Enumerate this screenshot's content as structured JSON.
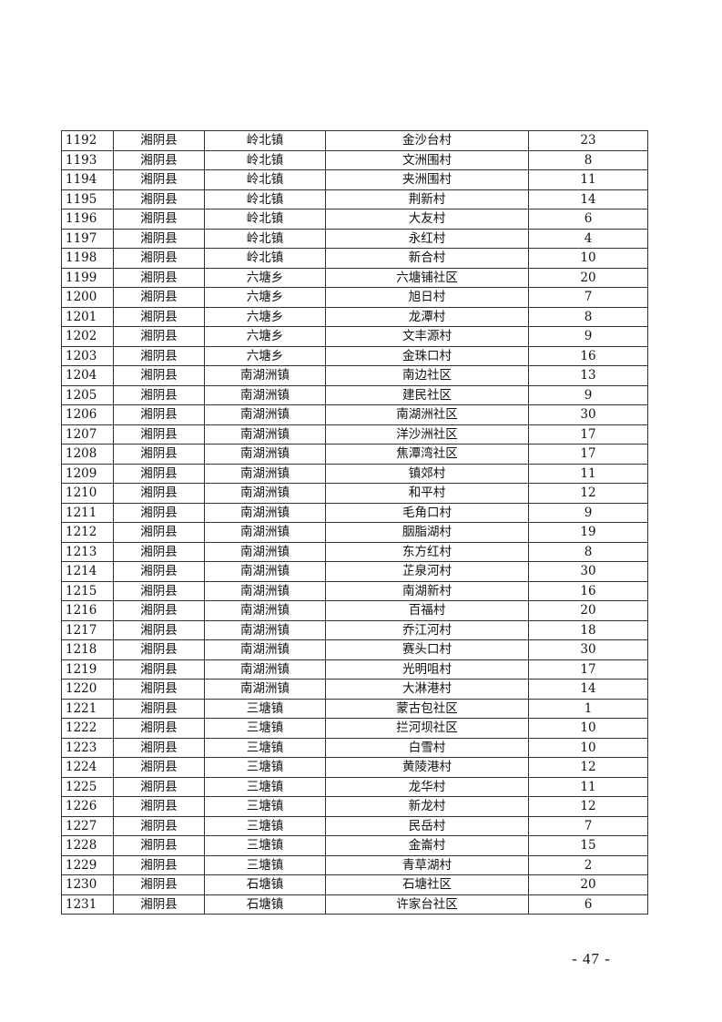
{
  "table": {
    "rows": [
      [
        "1192",
        "湘阴县",
        "岭北镇",
        "金沙台村",
        "23"
      ],
      [
        "1193",
        "湘阴县",
        "岭北镇",
        "文洲围村",
        "8"
      ],
      [
        "1194",
        "湘阴县",
        "岭北镇",
        "夹洲围村",
        "11"
      ],
      [
        "1195",
        "湘阴县",
        "岭北镇",
        "荆新村",
        "14"
      ],
      [
        "1196",
        "湘阴县",
        "岭北镇",
        "大友村",
        "6"
      ],
      [
        "1197",
        "湘阴县",
        "岭北镇",
        "永红村",
        "4"
      ],
      [
        "1198",
        "湘阴县",
        "岭北镇",
        "新合村",
        "10"
      ],
      [
        "1199",
        "湘阴县",
        "六塘乡",
        "六塘铺社区",
        "20"
      ],
      [
        "1200",
        "湘阴县",
        "六塘乡",
        "旭日村",
        "7"
      ],
      [
        "1201",
        "湘阴县",
        "六塘乡",
        "龙潭村",
        "8"
      ],
      [
        "1202",
        "湘阴县",
        "六塘乡",
        "文丰源村",
        "9"
      ],
      [
        "1203",
        "湘阴县",
        "六塘乡",
        "金珠口村",
        "16"
      ],
      [
        "1204",
        "湘阴县",
        "南湖洲镇",
        "南边社区",
        "13"
      ],
      [
        "1205",
        "湘阴县",
        "南湖洲镇",
        "建民社区",
        "9"
      ],
      [
        "1206",
        "湘阴县",
        "南湖洲镇",
        "南湖洲社区",
        "30"
      ],
      [
        "1207",
        "湘阴县",
        "南湖洲镇",
        "洋沙洲社区",
        "17"
      ],
      [
        "1208",
        "湘阴县",
        "南湖洲镇",
        "焦潭湾社区",
        "17"
      ],
      [
        "1209",
        "湘阴县",
        "南湖洲镇",
        "镇郊村",
        "11"
      ],
      [
        "1210",
        "湘阴县",
        "南湖洲镇",
        "和平村",
        "12"
      ],
      [
        "1211",
        "湘阴县",
        "南湖洲镇",
        "毛角口村",
        "9"
      ],
      [
        "1212",
        "湘阴县",
        "南湖洲镇",
        "胭脂湖村",
        "19"
      ],
      [
        "1213",
        "湘阴县",
        "南湖洲镇",
        "东方红村",
        "8"
      ],
      [
        "1214",
        "湘阴县",
        "南湖洲镇",
        "芷泉河村",
        "30"
      ],
      [
        "1215",
        "湘阴县",
        "南湖洲镇",
        "南湖新村",
        "16"
      ],
      [
        "1216",
        "湘阴县",
        "南湖洲镇",
        "百福村",
        "20"
      ],
      [
        "1217",
        "湘阴县",
        "南湖洲镇",
        "乔江河村",
        "18"
      ],
      [
        "1218",
        "湘阴县",
        "南湖洲镇",
        "赛头口村",
        "30"
      ],
      [
        "1219",
        "湘阴县",
        "南湖洲镇",
        "光明咀村",
        "17"
      ],
      [
        "1220",
        "湘阴县",
        "南湖洲镇",
        "大淋港村",
        "14"
      ],
      [
        "1221",
        "湘阴县",
        "三塘镇",
        "蒙古包社区",
        "1"
      ],
      [
        "1222",
        "湘阴县",
        "三塘镇",
        "拦河坝社区",
        "10"
      ],
      [
        "1223",
        "湘阴县",
        "三塘镇",
        "白雪村",
        "10"
      ],
      [
        "1224",
        "湘阴县",
        "三塘镇",
        "黄陵港村",
        "12"
      ],
      [
        "1225",
        "湘阴县",
        "三塘镇",
        "龙华村",
        "11"
      ],
      [
        "1226",
        "湘阴县",
        "三塘镇",
        "新龙村",
        "12"
      ],
      [
        "1227",
        "湘阴县",
        "三塘镇",
        "民岳村",
        "7"
      ],
      [
        "1228",
        "湘阴县",
        "三塘镇",
        "金崙村",
        "15"
      ],
      [
        "1229",
        "湘阴县",
        "三塘镇",
        "青草湖村",
        "2"
      ],
      [
        "1230",
        "湘阴县",
        "石塘镇",
        "石塘社区",
        "20"
      ],
      [
        "1231",
        "湘阴县",
        "石塘镇",
        "许家台社区",
        "6"
      ]
    ]
  },
  "footer": {
    "page_number": "- 47 -"
  }
}
